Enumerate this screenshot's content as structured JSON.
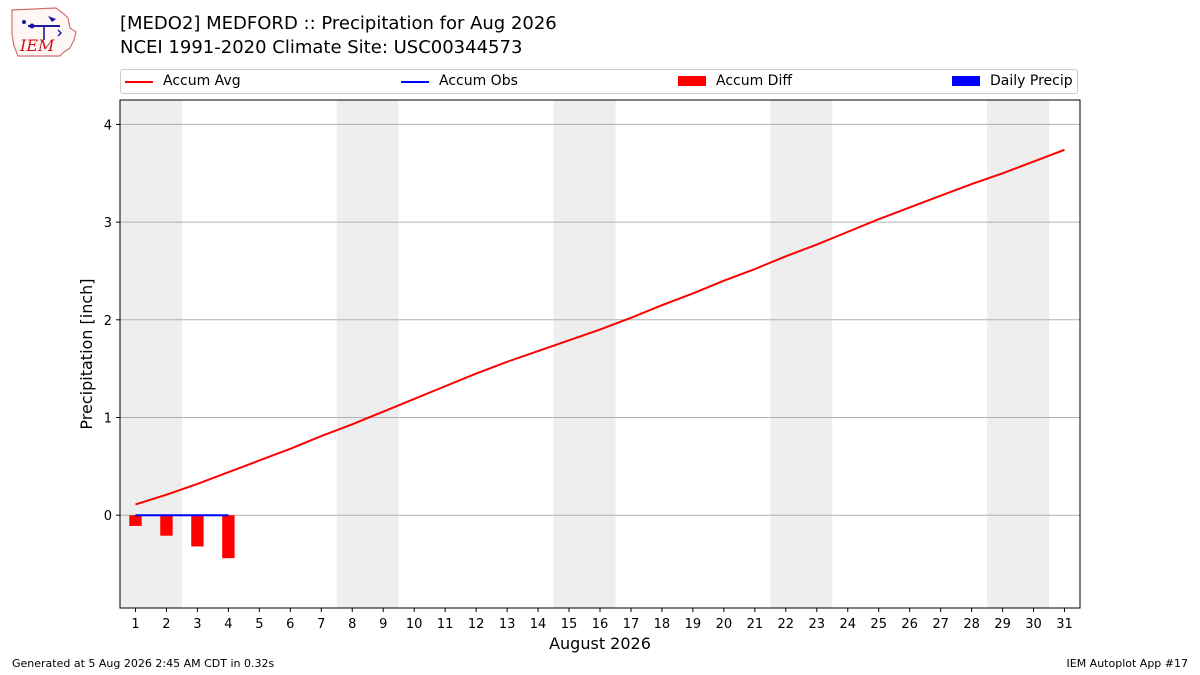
{
  "logo": {
    "text": "IEM",
    "icon": "iem-logo-icon"
  },
  "title": {
    "line1": "[MEDO2] MEDFORD :: Precipitation for Aug 2026",
    "line2": "NCEI 1991-2020 Climate Site: USC00344573"
  },
  "legend": {
    "accum_avg": "Accum Avg",
    "accum_obs": "Accum Obs",
    "accum_diff": "Accum Diff",
    "daily_precip": "Daily Precip"
  },
  "colors": {
    "accum_avg": "#ff0000",
    "accum_obs": "#0000ff",
    "accum_diff": "#ff0000",
    "daily_precip": "#0000ff",
    "weekend_band": "#eeeeee",
    "grid": "#b0b0b0"
  },
  "chart_data": {
    "type": "line",
    "xlabel": "August 2026",
    "ylabel": "Precipitation [inch]",
    "xlim": [
      0.5,
      31.5
    ],
    "ylim": [
      -0.95,
      4.25
    ],
    "x_ticks": [
      1,
      2,
      3,
      4,
      5,
      6,
      7,
      8,
      9,
      10,
      11,
      12,
      13,
      14,
      15,
      16,
      17,
      18,
      19,
      20,
      21,
      22,
      23,
      24,
      25,
      26,
      27,
      28,
      29,
      30,
      31
    ],
    "y_ticks": [
      0,
      1,
      2,
      3,
      4
    ],
    "grid": "horizontal",
    "legend_position": "top",
    "weekend_bands": [
      [
        0.5,
        2.5
      ],
      [
        7.5,
        9.5
      ],
      [
        14.5,
        16.5
      ],
      [
        21.5,
        23.5
      ],
      [
        28.5,
        30.5
      ]
    ],
    "series": [
      {
        "name": "Accum Avg",
        "kind": "line",
        "x": [
          1,
          2,
          3,
          4,
          5,
          6,
          7,
          8,
          9,
          10,
          11,
          12,
          13,
          14,
          15,
          16,
          17,
          18,
          19,
          20,
          21,
          22,
          23,
          24,
          25,
          26,
          27,
          28,
          29,
          30,
          31
        ],
        "values": [
          0.11,
          0.21,
          0.32,
          0.44,
          0.56,
          0.68,
          0.81,
          0.93,
          1.06,
          1.19,
          1.32,
          1.45,
          1.57,
          1.68,
          1.79,
          1.9,
          2.02,
          2.15,
          2.27,
          2.4,
          2.52,
          2.65,
          2.77,
          2.9,
          3.03,
          3.15,
          3.27,
          3.39,
          3.5,
          3.62,
          3.74
        ]
      },
      {
        "name": "Accum Obs",
        "kind": "line",
        "x": [
          1,
          2,
          3,
          4
        ],
        "values": [
          0.0,
          0.0,
          0.0,
          0.0
        ]
      },
      {
        "name": "Accum Diff",
        "kind": "bar",
        "x": [
          1,
          2,
          3,
          4
        ],
        "values": [
          -0.11,
          -0.21,
          -0.32,
          -0.44
        ]
      },
      {
        "name": "Daily Precip",
        "kind": "bar",
        "x": [
          1,
          2,
          3,
          4
        ],
        "values": [
          0.0,
          0.0,
          0.0,
          0.0
        ]
      }
    ]
  },
  "footer": {
    "left": "Generated at 5 Aug 2026 2:45 AM CDT in 0.32s",
    "right": "IEM Autoplot App #17"
  }
}
